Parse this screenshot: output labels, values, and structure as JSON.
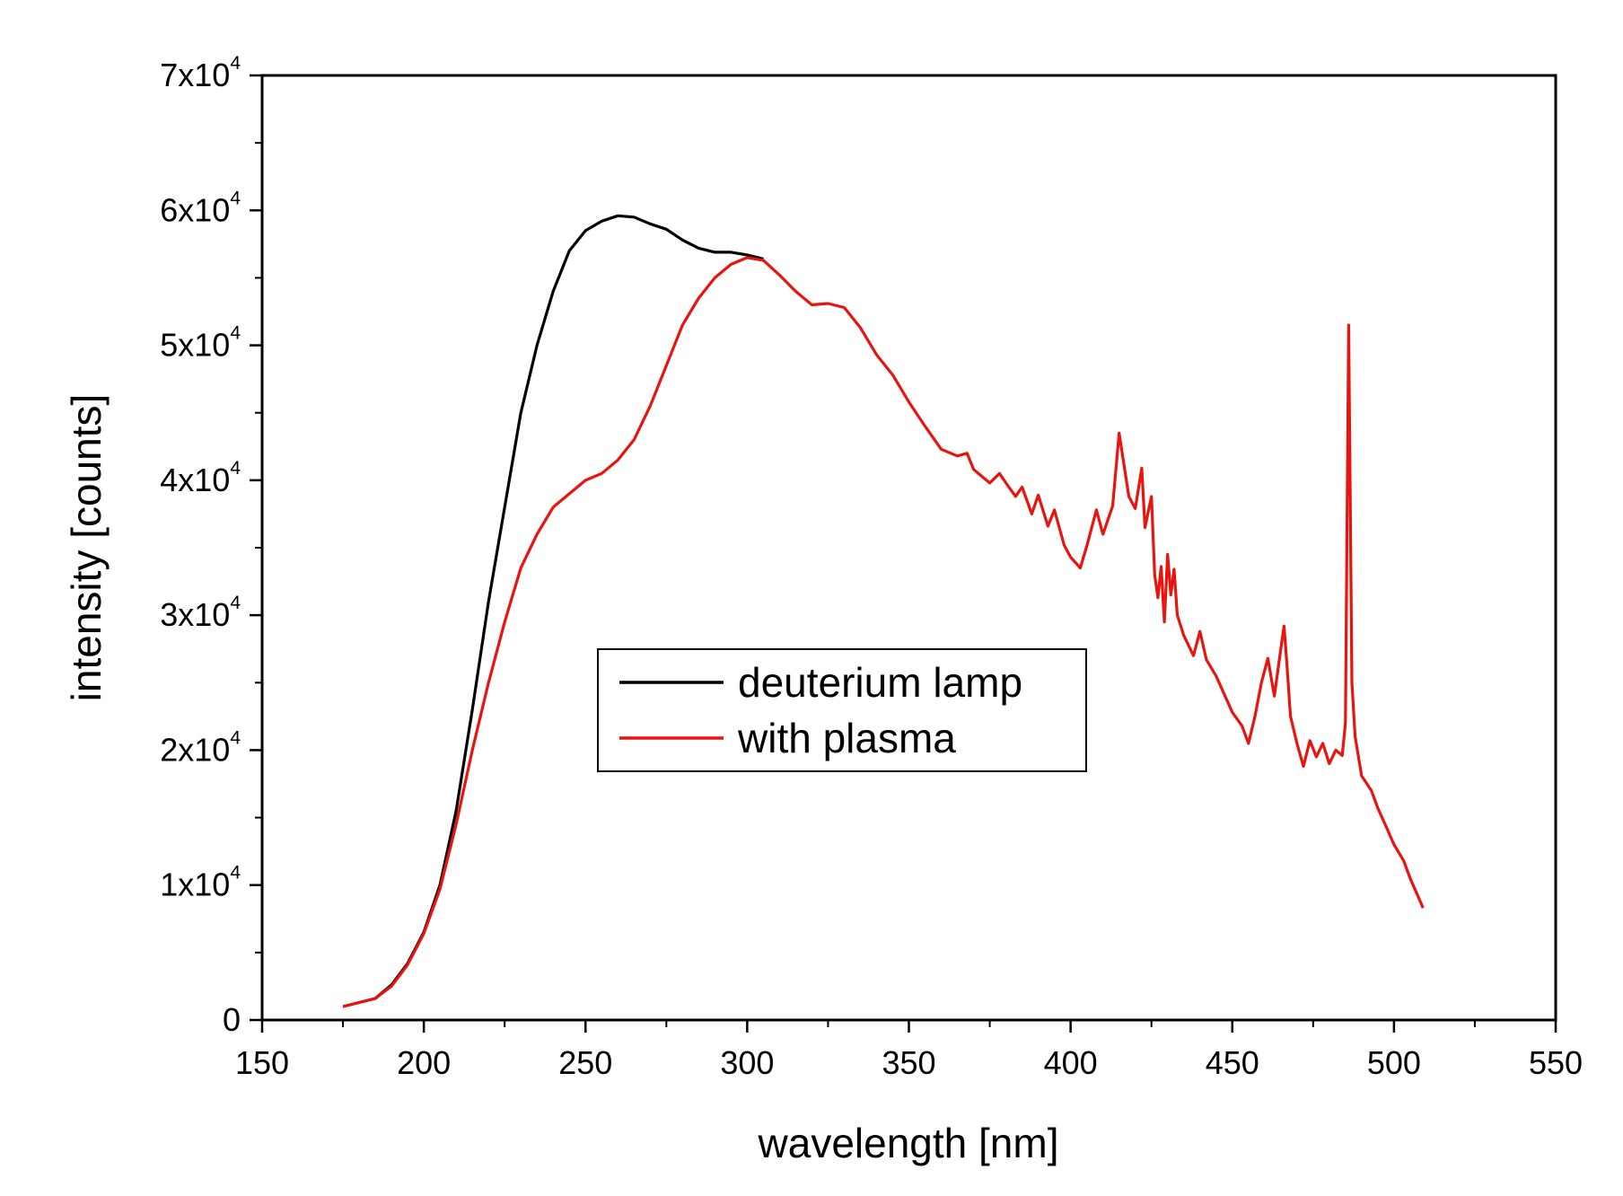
{
  "chart_data": {
    "type": "line",
    "title": "",
    "xlabel": "wavelength [nm]",
    "ylabel": "intensity [counts]",
    "xlim": [
      150,
      550
    ],
    "ylim": [
      0,
      70000
    ],
    "grid": false,
    "legend_position": "center",
    "x_ticks": [
      {
        "value": 150,
        "label": "150"
      },
      {
        "value": 200,
        "label": "200"
      },
      {
        "value": 250,
        "label": "250"
      },
      {
        "value": 300,
        "label": "300"
      },
      {
        "value": 350,
        "label": "350"
      },
      {
        "value": 400,
        "label": "400"
      },
      {
        "value": 450,
        "label": "450"
      },
      {
        "value": 500,
        "label": "500"
      },
      {
        "value": 550,
        "label": "550"
      }
    ],
    "y_ticks": [
      {
        "value": 0,
        "mantissa": "0",
        "exp": ""
      },
      {
        "value": 10000,
        "mantissa": "1x10",
        "exp": "4"
      },
      {
        "value": 20000,
        "mantissa": "2x10",
        "exp": "4"
      },
      {
        "value": 30000,
        "mantissa": "3x10",
        "exp": "4"
      },
      {
        "value": 40000,
        "mantissa": "4x10",
        "exp": "4"
      },
      {
        "value": 50000,
        "mantissa": "5x10",
        "exp": "4"
      },
      {
        "value": 60000,
        "mantissa": "6x10",
        "exp": "4"
      },
      {
        "value": 70000,
        "mantissa": "7x10",
        "exp": "4"
      }
    ],
    "series": [
      {
        "name": "deuterium lamp",
        "color": "#000000",
        "x": [
          175,
          180,
          185,
          190,
          195,
          200,
          205,
          210,
          215,
          220,
          225,
          230,
          235,
          240,
          245,
          250,
          255,
          260,
          265,
          270,
          275,
          280,
          285,
          290,
          295,
          300,
          305
        ],
        "y": [
          1000,
          1300,
          1600,
          2600,
          4200,
          6500,
          10000,
          15500,
          23000,
          31000,
          38000,
          45000,
          50000,
          54000,
          57000,
          58500,
          59200,
          59600,
          59500,
          59000,
          58600,
          57800,
          57200,
          56900,
          56900,
          56700,
          56400
        ]
      },
      {
        "name": "with plasma",
        "color": "#e8140f",
        "x": [
          175,
          180,
          185,
          190,
          195,
          200,
          205,
          210,
          215,
          220,
          225,
          230,
          235,
          240,
          245,
          250,
          255,
          260,
          265,
          270,
          275,
          280,
          285,
          290,
          295,
          300,
          305,
          310,
          315,
          320,
          325,
          330,
          335,
          340,
          345,
          350,
          355,
          360,
          365,
          368,
          370,
          373,
          375,
          378,
          380,
          383,
          385,
          388,
          390,
          393,
          395,
          398,
          400,
          403,
          405,
          408,
          410,
          413,
          415,
          418,
          420,
          422,
          423,
          425,
          426,
          427,
          428,
          429,
          430,
          431,
          432,
          433,
          435,
          438,
          440,
          442,
          445,
          450,
          453,
          455,
          457,
          459,
          461,
          463,
          465,
          466,
          467,
          468,
          470,
          472,
          474,
          476,
          478,
          480,
          482,
          484,
          485,
          486,
          487,
          488,
          490,
          493,
          495,
          498,
          500,
          503,
          505,
          507,
          509
        ],
        "y": [
          1000,
          1300,
          1600,
          2500,
          4100,
          6400,
          9700,
          14500,
          20000,
          25000,
          29500,
          33500,
          36000,
          38000,
          39000,
          40000,
          40500,
          41500,
          43000,
          45500,
          48500,
          51500,
          53500,
          55000,
          56000,
          56500,
          56300,
          55200,
          54000,
          53000,
          53100,
          52800,
          51300,
          49300,
          47800,
          45800,
          44000,
          42300,
          41800,
          42000,
          40800,
          40200,
          39800,
          40500,
          39800,
          38800,
          39500,
          37500,
          38900,
          36600,
          37800,
          35200,
          34300,
          33500,
          35100,
          37800,
          36000,
          38100,
          43500,
          38800,
          37900,
          40900,
          36500,
          38800,
          33000,
          31300,
          33600,
          29500,
          34500,
          31500,
          33400,
          30000,
          28500,
          27000,
          28800,
          26700,
          25500,
          22800,
          21800,
          20500,
          22500,
          25000,
          26800,
          24000,
          27500,
          29200,
          26000,
          22500,
          20500,
          18800,
          20700,
          19500,
          20500,
          19000,
          20000,
          19600,
          22000,
          51500,
          25000,
          21000,
          18100,
          17000,
          15700,
          14100,
          13000,
          11800,
          10500,
          9400,
          8300
        ]
      }
    ]
  }
}
